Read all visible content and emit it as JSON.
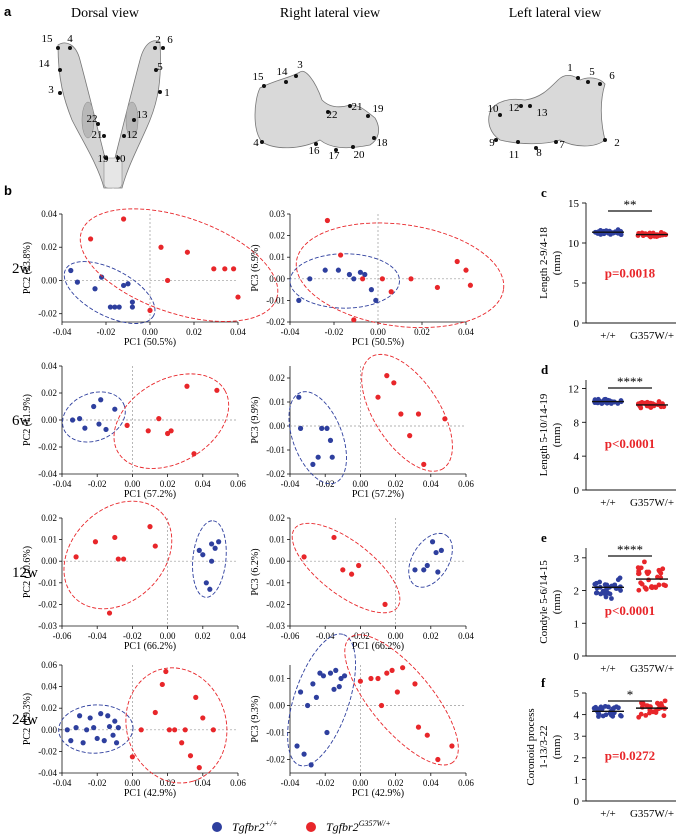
{
  "panels": {
    "a": "a",
    "b": "b",
    "c": "c",
    "d": "d",
    "e": "e",
    "f": "f"
  },
  "views": {
    "dorsal": {
      "title": "Dorsal view",
      "points": [
        "15",
        "4",
        "14",
        "3",
        "22",
        "21",
        "19",
        "10",
        "12",
        "13",
        "1",
        "5",
        "2",
        "6"
      ]
    },
    "right": {
      "title": "Right lateral view",
      "points": [
        "15",
        "14",
        "3",
        "22",
        "21",
        "19",
        "18",
        "20",
        "17",
        "16",
        "4"
      ]
    },
    "left": {
      "title": "Left  lateral view",
      "points": [
        "1",
        "5",
        "6",
        "10",
        "12",
        "13",
        "9",
        "11",
        "8",
        "7",
        "2"
      ]
    }
  },
  "colors": {
    "wt": "#2E3F9E",
    "mut": "#E8262A",
    "grid": "#999999"
  },
  "legend": {
    "wt_base": "Tgfbr2",
    "wt_sup": "+/+",
    "mut_base": "Tgfbr2",
    "mut_sup": "G357W/+"
  },
  "chart_data": [
    {
      "type": "scatter",
      "panel": "b",
      "row_label": "2w",
      "xlabel": "PC1 (50.5%)",
      "ylabel": "PC2 (23.8%)",
      "xlim": [
        -0.04,
        0.04
      ],
      "ylim": [
        -0.025,
        0.04
      ],
      "xticks": [
        -0.04,
        -0.02,
        0,
        0.02,
        0.04
      ],
      "xtick_labels": [
        "-0.04",
        "-0.02",
        "0.00",
        "0.02",
        "0.04"
      ],
      "yticks": [
        -0.02,
        0,
        0.02,
        0.04
      ],
      "ytick_labels": [
        "-0.02",
        "0.00",
        "0.02",
        "0.04"
      ],
      "series": [
        {
          "name": "+/+",
          "x": [
            -0.036,
            -0.033,
            -0.025,
            -0.022,
            -0.018,
            -0.016,
            -0.014,
            -0.012,
            -0.01,
            -0.008,
            -0.008
          ],
          "y": [
            0.006,
            -0.001,
            -0.005,
            0.002,
            -0.016,
            -0.016,
            -0.016,
            -0.003,
            -0.002,
            -0.013,
            -0.016
          ]
        },
        {
          "name": "G357W/+",
          "x": [
            -0.027,
            -0.012,
            0.0,
            0.005,
            0.008,
            0.017,
            0.029,
            0.034,
            0.038,
            0.04
          ],
          "y": [
            0.025,
            0.037,
            -0.018,
            0.02,
            0.0,
            0.017,
            0.007,
            0.007,
            0.007,
            -0.01
          ]
        }
      ]
    },
    {
      "type": "scatter",
      "panel": "b",
      "row_label": "2w",
      "xlabel": "PC1 (50.5%)",
      "ylabel": "PC3 (6.9%)",
      "xlim": [
        -0.04,
        0.04
      ],
      "ylim": [
        -0.02,
        0.03
      ],
      "xticks": [
        -0.04,
        -0.02,
        0,
        0.02,
        0.04
      ],
      "xtick_labels": [
        "-0.04",
        "-0.02",
        "0.00",
        "0.02",
        "0.04"
      ],
      "yticks": [
        -0.02,
        -0.01,
        0,
        0.01,
        0.02,
        0.03
      ],
      "ytick_labels": [
        "-0.02",
        "-0.01",
        "0.00",
        "0.01",
        "0.02",
        "0.03"
      ],
      "series": [
        {
          "name": "+/+",
          "x": [
            -0.036,
            -0.031,
            -0.024,
            -0.018,
            -0.013,
            -0.011,
            -0.008,
            -0.006,
            -0.003,
            -0.001
          ],
          "y": [
            -0.01,
            0.0,
            0.004,
            0.004,
            0.002,
            0.0,
            0.003,
            0.002,
            -0.005,
            -0.01
          ]
        },
        {
          "name": "G357W/+",
          "x": [
            -0.023,
            -0.017,
            -0.011,
            -0.007,
            0.002,
            0.006,
            0.015,
            0.027,
            0.036,
            0.04,
            0.042
          ],
          "y": [
            0.027,
            0.011,
            -0.019,
            0.0,
            0.0,
            -0.006,
            0.0,
            -0.004,
            0.008,
            0.004,
            -0.003
          ]
        }
      ]
    },
    {
      "type": "scatter",
      "panel": "b",
      "row_label": "6w",
      "xlabel": "PC1 (57.2%)",
      "ylabel": "PC2 (11.9%)",
      "xlim": [
        -0.04,
        0.06
      ],
      "ylim": [
        -0.04,
        0.04
      ],
      "xticks": [
        -0.04,
        -0.02,
        0,
        0.02,
        0.04,
        0.06
      ],
      "xtick_labels": [
        "-0.04",
        "-0.02",
        "0.00",
        "0.02",
        "0.04",
        "0.06"
      ],
      "yticks": [
        -0.04,
        -0.02,
        0,
        0.02,
        0.04
      ],
      "ytick_labels": [
        "-0.04",
        "-0.02",
        "0.00",
        "0.02",
        "0.04"
      ],
      "series": [
        {
          "name": "+/+",
          "x": [
            -0.034,
            -0.03,
            -0.027,
            -0.022,
            -0.019,
            -0.018,
            -0.015,
            -0.01
          ],
          "y": [
            0.0,
            0.001,
            -0.006,
            0.01,
            -0.003,
            0.015,
            -0.007,
            0.008
          ]
        },
        {
          "name": "G357W/+",
          "x": [
            -0.003,
            0.009,
            0.015,
            0.02,
            0.022,
            0.031,
            0.035,
            0.048
          ],
          "y": [
            -0.004,
            -0.008,
            0.001,
            -0.01,
            -0.008,
            0.025,
            -0.025,
            0.022
          ]
        }
      ]
    },
    {
      "type": "scatter",
      "panel": "b",
      "row_label": "6w",
      "xlabel": "PC1 (57.2%)",
      "ylabel": "PC3 (9.9%)",
      "xlim": [
        -0.04,
        0.06
      ],
      "ylim": [
        -0.02,
        0.025
      ],
      "xticks": [
        -0.04,
        -0.02,
        0,
        0.02,
        0.04,
        0.06
      ],
      "xtick_labels": [
        "-0.04",
        "-0.02",
        "0.00",
        "0.02",
        "0.04",
        "0.06"
      ],
      "yticks": [
        -0.02,
        -0.01,
        0,
        0.01,
        0.02
      ],
      "ytick_labels": [
        "-0.02",
        "-0.01",
        "0.00",
        "0.01",
        "0.02"
      ],
      "series": [
        {
          "name": "+/+",
          "x": [
            -0.035,
            -0.034,
            -0.027,
            -0.024,
            -0.022,
            -0.019,
            -0.017,
            -0.016
          ],
          "y": [
            0.012,
            -0.001,
            -0.016,
            -0.013,
            -0.001,
            -0.001,
            -0.006,
            -0.013
          ]
        },
        {
          "name": "G357W/+",
          "x": [
            0.01,
            0.015,
            0.019,
            0.023,
            0.028,
            0.033,
            0.036,
            0.048
          ],
          "y": [
            0.012,
            0.021,
            0.018,
            0.005,
            -0.004,
            0.005,
            -0.016,
            0.003
          ]
        }
      ]
    },
    {
      "type": "scatter",
      "panel": "b",
      "row_label": "12w",
      "xlabel": "PC1 (66.2%)",
      "ylabel": "PC2 (10.6%)",
      "xlim": [
        -0.06,
        0.04
      ],
      "ylim": [
        -0.03,
        0.02
      ],
      "xticks": [
        -0.06,
        -0.04,
        -0.02,
        0,
        0.02,
        0.04
      ],
      "xtick_labels": [
        "-0.06",
        "-0.04",
        "-0.02",
        "0.00",
        "0.02",
        "0.04"
      ],
      "yticks": [
        -0.03,
        -0.02,
        -0.01,
        0,
        0.01,
        0.02
      ],
      "ytick_labels": [
        "-0.03",
        "-0.02",
        "-0.01",
        "0.00",
        "0.01",
        "0.02"
      ],
      "series": [
        {
          "name": "+/+",
          "x": [
            0.018,
            0.02,
            0.022,
            0.024,
            0.025,
            0.025,
            0.027,
            0.029
          ],
          "y": [
            0.005,
            0.003,
            -0.01,
            -0.013,
            0.008,
            0.0,
            0.006,
            0.009
          ]
        },
        {
          "name": "G357W/+",
          "x": [
            -0.052,
            -0.041,
            -0.033,
            -0.03,
            -0.028,
            -0.025,
            -0.01,
            -0.007
          ],
          "y": [
            0.002,
            0.009,
            -0.024,
            0.011,
            0.001,
            0.001,
            0.016,
            0.007
          ]
        }
      ]
    },
    {
      "type": "scatter",
      "panel": "b",
      "row_label": "12w",
      "xlabel": "PC1 (66.2%)",
      "ylabel": "PC3 (6.2%)",
      "xlim": [
        -0.06,
        0.04
      ],
      "ylim": [
        -0.03,
        0.02
      ],
      "xticks": [
        -0.06,
        -0.04,
        -0.02,
        0,
        0.02,
        0.04
      ],
      "xtick_labels": [
        "-0.06",
        "-0.04",
        "-0.02",
        "0.00",
        "0.02",
        "0.04"
      ],
      "yticks": [
        -0.03,
        -0.02,
        -0.01,
        0,
        0.01,
        0.02
      ],
      "ytick_labels": [
        "-0.03",
        "-0.02",
        "-0.01",
        "0.00",
        "0.01",
        "0.02"
      ],
      "series": [
        {
          "name": "+/+",
          "x": [
            0.011,
            0.016,
            0.018,
            0.021,
            0.023,
            0.024,
            0.026
          ],
          "y": [
            -0.004,
            -0.004,
            -0.002,
            0.009,
            0.004,
            -0.005,
            0.005
          ]
        },
        {
          "name": "G357W/+",
          "x": [
            -0.052,
            -0.035,
            -0.03,
            -0.025,
            -0.021,
            -0.006
          ],
          "y": [
            0.002,
            0.011,
            -0.004,
            -0.006,
            -0.002,
            -0.02
          ]
        }
      ]
    },
    {
      "type": "scatter",
      "panel": "b",
      "row_label": "24w",
      "xlabel": "PC1 (42.9%)",
      "ylabel": "PC2 (19.3%)",
      "xlim": [
        -0.04,
        0.06
      ],
      "ylim": [
        -0.04,
        0.06
      ],
      "xticks": [
        -0.04,
        -0.02,
        0,
        0.02,
        0.04,
        0.06
      ],
      "xtick_labels": [
        "-0.04",
        "-0.02",
        "0.00",
        "0.02",
        "0.04",
        "0.06"
      ],
      "yticks": [
        -0.04,
        -0.02,
        0,
        0.02,
        0.04,
        0.06
      ],
      "ytick_labels": [
        "-0.04",
        "-0.02",
        "0.00",
        "0.02",
        "0.04",
        "0.06"
      ],
      "series": [
        {
          "name": "+/+",
          "x": [
            -0.037,
            -0.035,
            -0.032,
            -0.03,
            -0.028,
            -0.026,
            -0.024,
            -0.022,
            -0.02,
            -0.018,
            -0.016,
            -0.014,
            -0.013,
            -0.011,
            -0.01,
            -0.009,
            -0.008
          ],
          "y": [
            0.0,
            -0.01,
            0.002,
            0.013,
            -0.012,
            0.0,
            0.011,
            0.002,
            -0.008,
            0.015,
            -0.01,
            0.013,
            0.003,
            -0.005,
            0.008,
            -0.012,
            0.002
          ]
        },
        {
          "name": "G357W/+",
          "x": [
            0.0,
            0.005,
            0.013,
            0.017,
            0.019,
            0.021,
            0.024,
            0.028,
            0.03,
            0.033,
            0.036,
            0.038,
            0.04,
            0.046
          ],
          "y": [
            -0.025,
            0.0,
            0.016,
            0.042,
            0.054,
            0.0,
            0.0,
            -0.012,
            0.0,
            -0.024,
            0.03,
            -0.035,
            0.011,
            0.0
          ]
        }
      ]
    },
    {
      "type": "scatter",
      "panel": "b",
      "row_label": "24w",
      "xlabel": "PC1 (42.9%)",
      "ylabel": "PC3 (9.3%)",
      "xlim": [
        -0.04,
        0.06
      ],
      "ylim": [
        -0.025,
        0.015
      ],
      "xticks": [
        -0.04,
        -0.02,
        0,
        0.02,
        0.04,
        0.06
      ],
      "xtick_labels": [
        "-0.04",
        "-0.02",
        "0.00",
        "0.02",
        "0.04",
        "0.06"
      ],
      "yticks": [
        -0.02,
        -0.01,
        0,
        0.01
      ],
      "ytick_labels": [
        "-0.02",
        "-0.01",
        "0.00",
        "0.01"
      ],
      "series": [
        {
          "name": "+/+",
          "x": [
            -0.036,
            -0.034,
            -0.032,
            -0.03,
            -0.028,
            -0.027,
            -0.025,
            -0.023,
            -0.021,
            -0.019,
            -0.017,
            -0.015,
            -0.014,
            -0.012,
            -0.011,
            -0.009
          ],
          "y": [
            -0.015,
            0.005,
            -0.018,
            0.0,
            -0.022,
            0.008,
            0.003,
            0.012,
            0.011,
            -0.01,
            0.012,
            0.006,
            0.013,
            0.007,
            0.01,
            0.011
          ]
        },
        {
          "name": "G357W/+",
          "x": [
            0.0,
            0.006,
            0.01,
            0.012,
            0.015,
            0.018,
            0.021,
            0.024,
            0.031,
            0.033,
            0.038,
            0.044,
            0.052
          ],
          "y": [
            0.009,
            0.01,
            0.01,
            0.0,
            0.012,
            0.013,
            0.005,
            0.014,
            0.008,
            -0.008,
            -0.011,
            -0.02,
            -0.015
          ]
        }
      ]
    },
    {
      "type": "scatter",
      "panel": "c",
      "ylabel_lines": [
        "Length 2-9/4-18",
        "(mm)"
      ],
      "ylim": [
        0,
        15
      ],
      "yticks": [
        0,
        5,
        10,
        15
      ],
      "ytick_labels": [
        "0",
        "5",
        "10",
        "15"
      ],
      "categories": [
        "+/+",
        "G357W/+"
      ],
      "means": [
        11.35,
        11.05
      ],
      "spread": [
        0.35,
        0.35
      ],
      "n": [
        30,
        30
      ],
      "significance": "**",
      "pvalue": "p=0.0018"
    },
    {
      "type": "scatter",
      "panel": "d",
      "ylabel_lines": [
        "Length 5-10/14-19",
        "(mm)"
      ],
      "ylim": [
        0,
        13
      ],
      "yticks": [
        0,
        4,
        8,
        12
      ],
      "ytick_labels": [
        "0",
        "4",
        "8",
        "12"
      ],
      "categories": [
        "+/+",
        "G357W/+"
      ],
      "means": [
        10.45,
        10.05
      ],
      "spread": [
        0.35,
        0.45
      ],
      "n": [
        30,
        30
      ],
      "significance": "****",
      "pvalue": "p<0.0001"
    },
    {
      "type": "scatter",
      "panel": "e",
      "ylabel_lines": [
        "Condyle 5-6/14-15",
        "(mm)"
      ],
      "ylim": [
        0,
        3.3
      ],
      "yticks": [
        0,
        1,
        2,
        3
      ],
      "ytick_labels": [
        "0",
        "1",
        "2",
        "3"
      ],
      "categories": [
        "+/+",
        "G357W/+"
      ],
      "means": [
        2.1,
        2.35
      ],
      "spread": [
        0.35,
        0.6
      ],
      "n": [
        30,
        30
      ],
      "significance": "****",
      "pvalue": "p<0.0001"
    },
    {
      "type": "scatter",
      "panel": "f",
      "ylabel_lines": [
        "Coronoid process",
        "1-13/3-22",
        "(mm)"
      ],
      "ylim": [
        0,
        5
      ],
      "yticks": [
        0,
        1,
        2,
        3,
        4,
        5
      ],
      "ytick_labels": [
        "0",
        "1",
        "2",
        "3",
        "4",
        "5"
      ],
      "categories": [
        "+/+",
        "G357W/+"
      ],
      "means": [
        4.15,
        4.3
      ],
      "spread": [
        0.35,
        0.5
      ],
      "n": [
        30,
        30
      ],
      "significance": "*",
      "pvalue": "p=0.0272"
    }
  ]
}
